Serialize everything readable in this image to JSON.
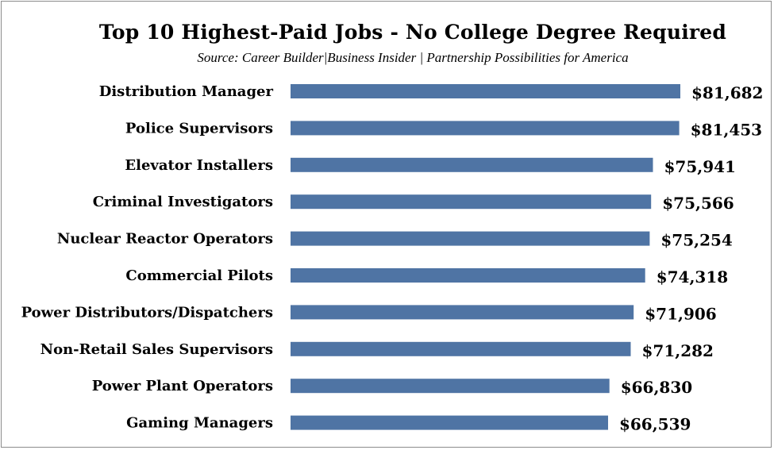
{
  "chart_data": {
    "type": "bar",
    "orientation": "horizontal",
    "title": "Top 10 Highest-Paid Jobs - No College Degree Required",
    "subtitle": "Source: Career Builder|Business Insider | Partnership Possibilities for America",
    "categories": [
      "Distribution Manager",
      "Police Supervisors",
      "Elevator Installers",
      "Criminal Investigators",
      "Nuclear Reactor Operators",
      "Commercial Pilots",
      "Power Distributors/Dispatchers",
      "Non-Retail Sales Supervisors",
      "Power Plant Operators",
      "Gaming Managers"
    ],
    "values": [
      81682,
      81453,
      75941,
      75566,
      75254,
      74318,
      71906,
      71282,
      66830,
      66539
    ],
    "data_labels": [
      "$81,682",
      "$81,453",
      "$75,941",
      "$75,566",
      "$75,254",
      "$74,318",
      "$71,906",
      "$71,282",
      "$66,830",
      "$66,539"
    ],
    "bar_color": "#4f74a4",
    "xlim": [
      0,
      81682
    ],
    "grid": false,
    "legend": "none"
  }
}
